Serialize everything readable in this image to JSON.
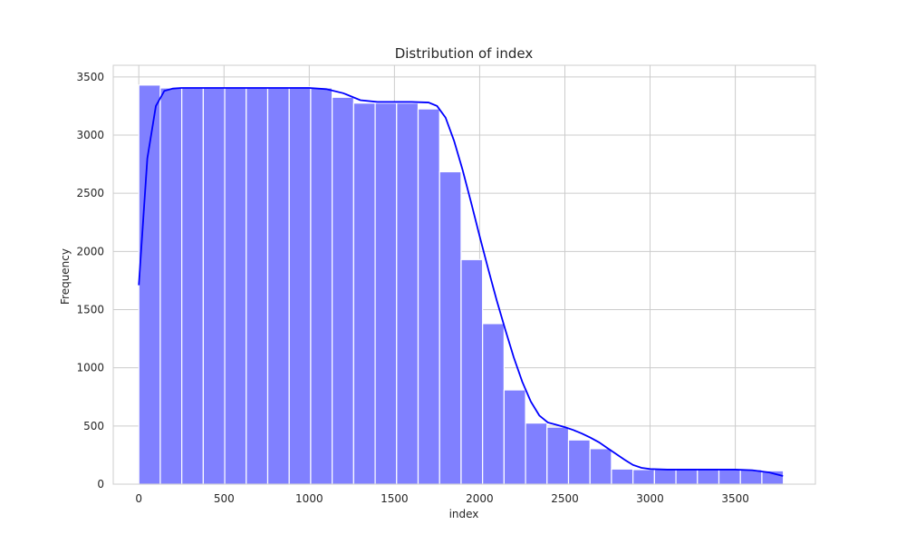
{
  "chart_data": {
    "type": "bar",
    "title": "Distribution of index",
    "xlabel": "index",
    "ylabel": "Frequency",
    "xlim": [
      -150,
      3970
    ],
    "ylim": [
      0,
      3600
    ],
    "xticks": [
      0,
      500,
      1000,
      1500,
      2000,
      2500,
      3000,
      3500
    ],
    "yticks": [
      0,
      500,
      1000,
      1500,
      2000,
      2500,
      3000,
      3500
    ],
    "grid": true,
    "bin_width": 126.07,
    "bin_starts": [
      0,
      126.07,
      252.14,
      378.21,
      504.28,
      630.35,
      756.42,
      882.49,
      1008.56,
      1134.63,
      1260.7,
      1386.77,
      1512.84,
      1638.91,
      1764.98,
      1891.05,
      2017.12,
      2143.19,
      2269.26,
      2395.33,
      2521.4,
      2647.47,
      2773.54,
      2899.61,
      3025.68,
      3151.75,
      3277.82,
      3403.89,
      3529.96,
      3656.03
    ],
    "values": [
      3430,
      3405,
      3405,
      3405,
      3405,
      3405,
      3405,
      3415,
      3405,
      3325,
      3275,
      3275,
      3275,
      3225,
      2685,
      1930,
      1380,
      810,
      525,
      490,
      380,
      305,
      130,
      125,
      125,
      125,
      125,
      125,
      125,
      115
    ],
    "kde": {
      "x": [
        0,
        50,
        100,
        150,
        200,
        250,
        300,
        400,
        500,
        600,
        700,
        800,
        900,
        1000,
        1100,
        1200,
        1300,
        1400,
        1500,
        1600,
        1700,
        1750,
        1800,
        1850,
        1900,
        1950,
        2000,
        2050,
        2100,
        2150,
        2200,
        2250,
        2300,
        2350,
        2400,
        2450,
        2500,
        2550,
        2600,
        2650,
        2700,
        2750,
        2800,
        2850,
        2900,
        2950,
        3000,
        3100,
        3200,
        3300,
        3400,
        3500,
        3600,
        3700,
        3780
      ],
      "y": [
        1710,
        2800,
        3250,
        3380,
        3400,
        3405,
        3405,
        3405,
        3405,
        3405,
        3405,
        3405,
        3405,
        3405,
        3395,
        3360,
        3300,
        3285,
        3285,
        3285,
        3280,
        3250,
        3150,
        2950,
        2700,
        2420,
        2130,
        1850,
        1580,
        1330,
        1090,
        880,
        710,
        590,
        530,
        510,
        490,
        465,
        435,
        400,
        360,
        310,
        260,
        210,
        165,
        140,
        130,
        125,
        125,
        125,
        125,
        125,
        120,
        100,
        70
      ]
    },
    "colors": {
      "bar_fill": "#8080ff",
      "bar_edge": "#ffffff",
      "kde_line": "#0000ff",
      "grid": "#cccccc",
      "frame": "#cccccc"
    }
  }
}
